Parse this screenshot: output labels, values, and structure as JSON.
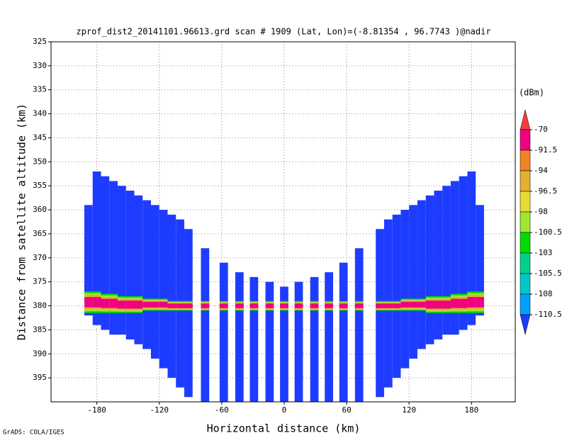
{
  "chart_data": {
    "type": "profile",
    "title": "zprof_dist2_20141101.96613.grd  scan # 1909  (Lat, Lon)=(-8.81354 , 96.7743 )@nadir",
    "x_label": "Horizontal distance (km)",
    "y_label": "Distance from satellite altitude (km)",
    "footer": "GrADS: COLA/IGES",
    "xlim": [
      -224,
      222
    ],
    "xticks": [
      -180,
      -120,
      -60,
      0,
      60,
      120,
      180
    ],
    "ylim": [
      325,
      400
    ],
    "yticks": [
      325,
      330,
      335,
      340,
      345,
      350,
      355,
      360,
      365,
      370,
      375,
      380,
      385,
      390,
      395
    ],
    "grid": true,
    "column_width": 8,
    "x": [
      -188,
      -180,
      -172,
      -164,
      -156,
      -148,
      -140,
      -132,
      -124,
      -116,
      -108,
      -100,
      -92,
      -76,
      -58,
      -43,
      -29,
      -14,
      0,
      14,
      29,
      43,
      57,
      72,
      92,
      100,
      108,
      116,
      124,
      132,
      140,
      148,
      156,
      164,
      172,
      180,
      188
    ],
    "top": [
      359,
      352,
      353,
      354,
      355,
      356,
      357,
      358,
      359,
      360,
      361,
      362,
      364,
      368,
      371,
      373,
      374,
      375,
      376,
      375,
      374,
      373,
      371,
      368,
      364,
      362,
      361,
      360,
      359,
      358,
      357,
      356,
      355,
      354,
      353,
      352,
      359
    ],
    "bottom": [
      382,
      384,
      385,
      386,
      386,
      387,
      388,
      389,
      391,
      393,
      395,
      397,
      399,
      400,
      400,
      400,
      400,
      400,
      400,
      400,
      400,
      400,
      400,
      400,
      399,
      397,
      395,
      393,
      391,
      389,
      388,
      387,
      386,
      386,
      385,
      384,
      382
    ],
    "band_top": [
      377,
      377,
      377.5,
      377.5,
      378,
      378,
      378,
      378.5,
      378.5,
      378.5,
      379,
      379,
      379,
      379,
      379,
      379,
      379,
      379,
      379,
      379,
      379,
      379,
      379,
      379,
      379,
      379,
      379,
      378.5,
      378.5,
      378.5,
      378,
      378,
      378,
      377.5,
      377.5,
      377,
      377
    ],
    "band_bottom": [
      381.5,
      381.5,
      381.5,
      381.5,
      381.5,
      381.5,
      381.5,
      381,
      381,
      381,
      381,
      381,
      381,
      381,
      381,
      381,
      381,
      381,
      381,
      381,
      381,
      381,
      381,
      381,
      381,
      381,
      381,
      381,
      381,
      381,
      381.5,
      381.5,
      381.5,
      381.5,
      381.5,
      381.5,
      381.5
    ],
    "colorbar": {
      "label": "(dBm)",
      "levels": [
        -70,
        -91.5,
        -94,
        -96.5,
        -98,
        -100.5,
        -103,
        -105.5,
        -108,
        -110.5
      ],
      "colors": [
        "#fa3c3c",
        "#f00082",
        "#f08228",
        "#e6af2d",
        "#e6dc32",
        "#a0e632",
        "#00dc00",
        "#00d28c",
        "#00c8c8",
        "#00a0ff",
        "#1e3cff"
      ]
    }
  }
}
